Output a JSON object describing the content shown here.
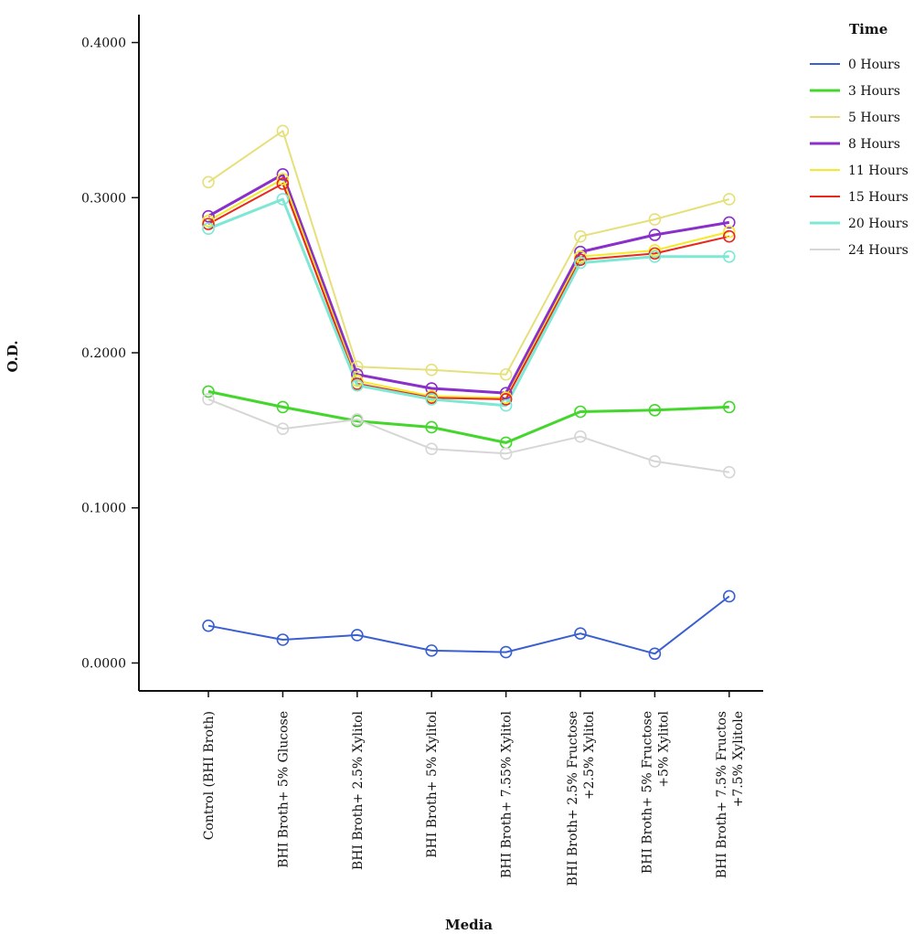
{
  "chart_data": {
    "type": "line",
    "xlabel": "Media",
    "ylabel": "O.D.",
    "ylim": [
      -0.018,
      0.418
    ],
    "yticks": [
      "0.0000",
      "0.1000",
      "0.2000",
      "0.3000",
      "0.4000"
    ],
    "ytick_values": [
      0.0,
      0.1,
      0.2,
      0.3,
      0.4
    ],
    "grid": false,
    "legend_title": "Time",
    "legend_position": "right",
    "categories": [
      [
        "Control (BHI Broth)"
      ],
      [
        "BHI Broth+ 5% Glucose"
      ],
      [
        "BHI Broth+ 2.5% Xylitol"
      ],
      [
        "BHI Broth+ 5% Xylitol"
      ],
      [
        "BHI Broth+ 7.55% Xylitol"
      ],
      [
        "BHI Broth+ 2.5% Fructose",
        "+2.5% Xylitol"
      ],
      [
        "BHI Broth+ 5% Fructose",
        "+5% Xylitol"
      ],
      [
        "BHI Broth+ 7.5% Fructos",
        "+7.5% Xylitole"
      ]
    ],
    "series": [
      {
        "name": "0 Hours",
        "color": "#3a5fd0",
        "width": 2,
        "values": [
          0.024,
          0.015,
          0.018,
          0.008,
          0.007,
          0.019,
          0.006,
          0.043
        ]
      },
      {
        "name": "3 Hours",
        "color": "#44d62c",
        "width": 3,
        "values": [
          0.175,
          0.165,
          0.156,
          0.152,
          0.142,
          0.162,
          0.163,
          0.165
        ]
      },
      {
        "name": "5 Hours",
        "color": "#e6e07a",
        "width": 2,
        "values": [
          0.31,
          0.343,
          0.191,
          0.189,
          0.186,
          0.275,
          0.286,
          0.299
        ]
      },
      {
        "name": "8 Hours",
        "color": "#8a2fc9",
        "width": 3,
        "values": [
          0.288,
          0.315,
          0.186,
          0.177,
          0.174,
          0.265,
          0.276,
          0.284
        ]
      },
      {
        "name": "11 Hours",
        "color": "#f5ea2a",
        "width": 2,
        "values": [
          0.285,
          0.312,
          0.182,
          0.172,
          0.171,
          0.262,
          0.266,
          0.278
        ]
      },
      {
        "name": "15 Hours",
        "color": "#e8281e",
        "width": 2,
        "values": [
          0.283,
          0.309,
          0.18,
          0.171,
          0.17,
          0.26,
          0.264,
          0.275
        ]
      },
      {
        "name": "20 Hours",
        "color": "#7de8d4",
        "width": 3,
        "values": [
          0.28,
          0.299,
          0.179,
          0.17,
          0.166,
          0.258,
          0.262,
          0.262
        ]
      },
      {
        "name": "24 Hours",
        "color": "#d6d6d6",
        "width": 2,
        "values": [
          0.17,
          0.151,
          0.157,
          0.138,
          0.135,
          0.146,
          0.13,
          0.123
        ]
      }
    ]
  }
}
